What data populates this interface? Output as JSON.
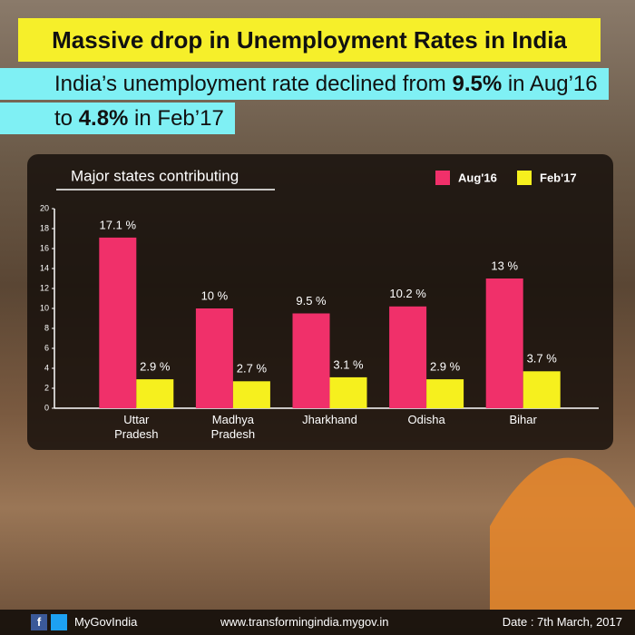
{
  "title": "Massive drop in Unemployment Rates in India",
  "subtitle": [
    "India’s unemployment rate declined from ",
    "9.5%",
    " in Aug’16 to ",
    "4.8%",
    " in Feb’17"
  ],
  "chart_data": {
    "type": "bar",
    "title": "Major states contributing",
    "categories": [
      "Uttar Pradesh",
      "Madhya Pradesh",
      "Jharkhand",
      "Odisha",
      "Bihar"
    ],
    "series": [
      {
        "name": "Aug'16",
        "color": "#f0306a",
        "values": [
          17.1,
          10,
          9.5,
          10.2,
          13
        ],
        "value_labels": [
          "17.1 %",
          "10 %",
          "9.5 %",
          "10.2 %",
          "13 %"
        ]
      },
      {
        "name": "Feb'17",
        "color": "#f6f01e",
        "values": [
          2.9,
          2.7,
          3.1,
          2.9,
          3.7
        ],
        "value_labels": [
          "2.9 %",
          "2.7 %",
          "3.1 %",
          "2.9 %",
          "3.7 %"
        ]
      }
    ],
    "ylim": [
      0,
      20
    ],
    "yticks": [
      0,
      2,
      4,
      6,
      8,
      10,
      12,
      14,
      16,
      18,
      20
    ],
    "legend": "top-right"
  },
  "footer": {
    "handle": "MyGovIndia",
    "website": "www.transformingindia.mygov.in",
    "date": "Date : 7th March, 2017"
  }
}
